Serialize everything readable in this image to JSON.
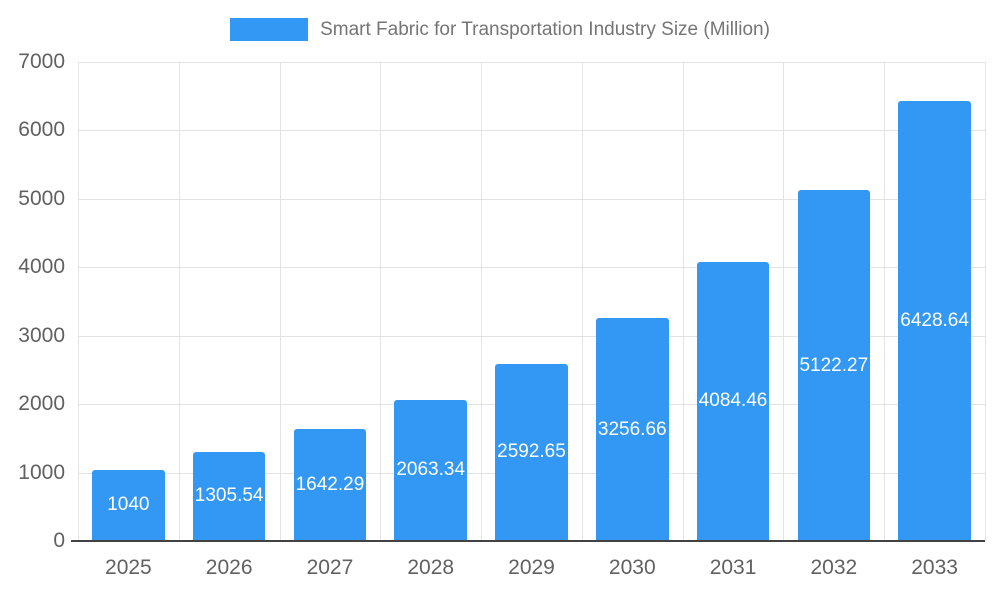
{
  "chart_data": {
    "type": "bar",
    "title": "Smart Fabric for Transportation Industry Size (Million)",
    "categories": [
      "2025",
      "2026",
      "2027",
      "2028",
      "2029",
      "2030",
      "2031",
      "2032",
      "2033"
    ],
    "values": [
      1040,
      1305.54,
      1642.29,
      2063.34,
      2592.65,
      3256.66,
      4084.46,
      5122.27,
      6428.64
    ],
    "labels": [
      "1040",
      "1305.54",
      "1642.29",
      "2063.34",
      "2592.65",
      "3256.66",
      "4084.46",
      "5122.27",
      "6428.64"
    ],
    "ylabel": "",
    "xlabel": "",
    "ylim": [
      0,
      7000
    ],
    "ytick_step": 1000,
    "ytick_labels": [
      "0",
      "1000",
      "2000",
      "3000",
      "4000",
      "5000",
      "6000",
      "7000"
    ],
    "grid": true,
    "legend_position": "top",
    "colors": {
      "bar": "#3398f3",
      "grid": "#e3e3e3",
      "axis": "#424242",
      "tick_label": "#616161",
      "title": "#757575",
      "value_label": "#ffffff",
      "background": "#ffffff"
    }
  }
}
